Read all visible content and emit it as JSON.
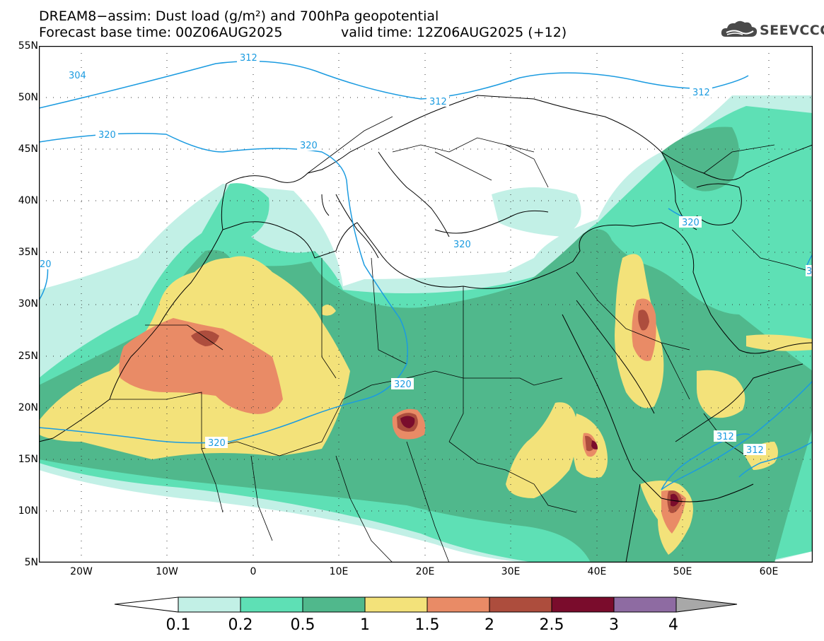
{
  "title": {
    "line1": "DREAM8−assim: Dust load (g/m²) and 700hPa geopotential",
    "base": "Forecast base time: 00Z06AUG2025",
    "valid": "valid time: 12Z06AUG2025 (+12)"
  },
  "logo": {
    "text": "SEEVCCC",
    "icon": "cloud-logo-icon"
  },
  "axes": {
    "lat_labels": [
      "55N",
      "50N",
      "45N",
      "40N",
      "35N",
      "30N",
      "25N",
      "20N",
      "15N",
      "10N",
      "5N"
    ],
    "lon_labels": [
      "20W",
      "10W",
      "0",
      "10E",
      "20E",
      "30E",
      "40E",
      "50E",
      "60E"
    ]
  },
  "contours": {
    "color": "#1b9be0",
    "labels": [
      "312",
      "304",
      "320",
      "320",
      "312",
      "312",
      "320",
      "320",
      "320",
      "320",
      "312",
      "312",
      "20",
      "3"
    ]
  },
  "colorbar": {
    "labels": [
      "0.1",
      "0.2",
      "0.5",
      "1",
      "1.5",
      "2",
      "2.5",
      "3",
      "4"
    ],
    "colors": [
      "#c2f0e6",
      "#5ee0b5",
      "#50b88c",
      "#f3e27a",
      "#e98b66",
      "#ad4d3d",
      "#7a0c2c",
      "#8e6ba2",
      "#a8a8a8"
    ],
    "under_color": "#ffffff"
  },
  "dust_colors": {
    "l1": "#c2f0e6",
    "l2": "#5ee0b5",
    "l3": "#50b88c",
    "l4": "#f3e27a",
    "l5": "#e98b66",
    "l6": "#ad4d3d",
    "l7": "#7a0c2c"
  }
}
